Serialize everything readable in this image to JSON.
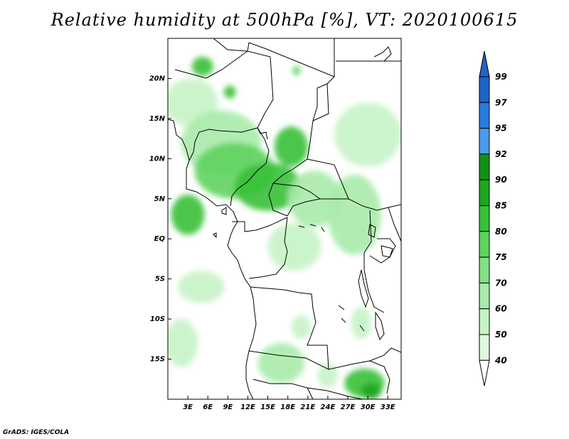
{
  "title": "Relative humidity at 500hPa [%], VT: 2020100615",
  "credit": "GrADS: IGES/COLA",
  "map": {
    "lon_range": [
      0,
      35
    ],
    "lat_range": [
      -20,
      25
    ],
    "lon_ticks": [
      3,
      6,
      9,
      12,
      15,
      18,
      21,
      24,
      27,
      30,
      33
    ],
    "lon_tick_labels": [
      "3E",
      "6E",
      "9E",
      "12E",
      "15E",
      "18E",
      "21E",
      "24E",
      "27E",
      "30E",
      "33E"
    ],
    "lat_ticks": [
      20,
      15,
      10,
      5,
      0,
      -5,
      -10,
      -15
    ],
    "lat_tick_labels": [
      "20N",
      "15N",
      "10N",
      "5N",
      "EQ",
      "5S",
      "10S",
      "15S"
    ]
  },
  "colorbar": {
    "levels": [
      "99",
      "97",
      "95",
      "92",
      "90",
      "85",
      "80",
      "75",
      "70",
      "60",
      "50",
      "40"
    ],
    "colors": [
      "#1e64c8",
      "#2a7be0",
      "#4a9bea",
      "#129018",
      "#1fa51f",
      "#39c039",
      "#5fd35f",
      "#84df84",
      "#a8ebaa",
      "#c6f3c6",
      "#e0f9e0",
      "#f2fcf2"
    ],
    "over_color": "#1e64c8",
    "under_color": "#ffffff"
  },
  "humidity_patches": [
    {
      "lon": 5.2,
      "lat": 21.5,
      "rlon": 1.6,
      "rlat": 1.2,
      "rh": 85
    },
    {
      "lon": 9.3,
      "lat": 18.3,
      "rlon": 0.9,
      "rlat": 0.8,
      "rh": 85
    },
    {
      "lon": 19.3,
      "lat": 21.0,
      "rlon": 0.6,
      "rlat": 0.6,
      "rh": 80
    },
    {
      "lon": 3.5,
      "lat": 17.0,
      "rlon": 4.0,
      "rlat": 3.0,
      "rh": 60
    },
    {
      "lon": 8.0,
      "lat": 12.0,
      "rlon": 6.0,
      "rlat": 4.0,
      "rh": 70
    },
    {
      "lon": 10.0,
      "lat": 8.5,
      "rlon": 6.0,
      "rlat": 3.5,
      "rh": 80
    },
    {
      "lon": 15.0,
      "lat": 6.5,
      "rlon": 5.0,
      "rlat": 3.0,
      "rh": 85
    },
    {
      "lon": 18.5,
      "lat": 11.5,
      "rlon": 2.5,
      "rlat": 2.5,
      "rh": 85
    },
    {
      "lon": 3.0,
      "lat": 3.0,
      "rlon": 2.5,
      "rlat": 2.5,
      "rh": 85
    },
    {
      "lon": 22.0,
      "lat": 5.0,
      "rlon": 4.0,
      "rlat": 3.5,
      "rh": 70
    },
    {
      "lon": 30.0,
      "lat": 13.0,
      "rlon": 5.0,
      "rlat": 4.0,
      "rh": 60
    },
    {
      "lon": 28.0,
      "lat": 3.0,
      "rlon": 4.0,
      "rlat": 5.0,
      "rh": 70
    },
    {
      "lon": 19.0,
      "lat": -1.0,
      "rlon": 4.0,
      "rlat": 3.0,
      "rh": 60
    },
    {
      "lon": 5.0,
      "lat": -6.0,
      "rlon": 3.5,
      "rlat": 2.0,
      "rh": 60
    },
    {
      "lon": 2.0,
      "lat": -13.0,
      "rlon": 2.5,
      "rlat": 3.0,
      "rh": 60
    },
    {
      "lon": 17.0,
      "lat": -15.5,
      "rlon": 3.5,
      "rlat": 2.5,
      "rh": 70
    },
    {
      "lon": 20.0,
      "lat": -11.0,
      "rlon": 1.5,
      "rlat": 1.5,
      "rh": 60
    },
    {
      "lon": 29.5,
      "lat": -18.0,
      "rlon": 3.0,
      "rlat": 1.8,
      "rh": 85
    },
    {
      "lon": 30.5,
      "lat": -19.0,
      "rlon": 1.5,
      "rlat": 1.0,
      "rh": 90
    },
    {
      "lon": 29.0,
      "lat": -10.5,
      "rlon": 1.5,
      "rlat": 2.0,
      "rh": 60
    },
    {
      "lon": 24.0,
      "lat": -17.0,
      "rlon": 1.5,
      "rlat": 1.5,
      "rh": 60
    }
  ]
}
